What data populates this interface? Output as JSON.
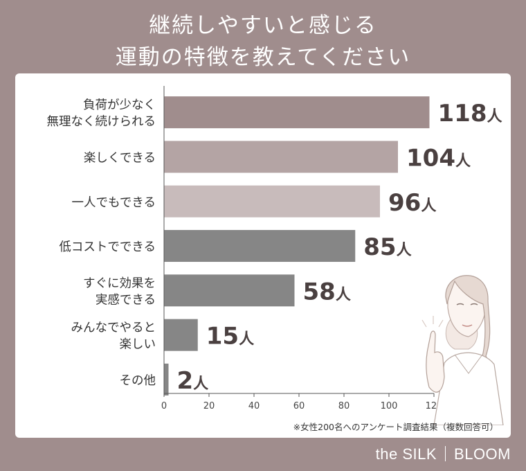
{
  "title_lines": [
    "継続しやすいと感じる",
    "運動の特徴を教えてください"
  ],
  "footnote": "※女性200名へのアンケート調査結果（複数回答可）",
  "brand": {
    "left": "the SILK",
    "right": "BLOOM"
  },
  "chart_data": {
    "type": "bar",
    "orientation": "horizontal",
    "categories": [
      [
        "負荷が少なく",
        "無理なく続けられる"
      ],
      [
        "楽しくできる"
      ],
      [
        "一人でもできる"
      ],
      [
        "低コストでできる"
      ],
      [
        "すぐに効果を",
        "実感できる"
      ],
      [
        "みんなでやると",
        "楽しい"
      ],
      [
        "その他"
      ]
    ],
    "values": [
      118,
      104,
      96,
      85,
      58,
      15,
      2
    ],
    "value_unit": "人",
    "bar_colors": [
      "#a08d8d",
      "#b4a4a4",
      "#c8bbbb",
      "#868686",
      "#868686",
      "#868686",
      "#868686"
    ],
    "xlim": [
      0,
      120
    ],
    "xticks": [
      "0",
      "20",
      "40",
      "60",
      "80",
      "100",
      "120"
    ],
    "grid": false
  },
  "colors": {
    "background": "#a08d8d",
    "panel": "#ffffff",
    "value_text": "#4a4040",
    "label_text": "#333333"
  }
}
